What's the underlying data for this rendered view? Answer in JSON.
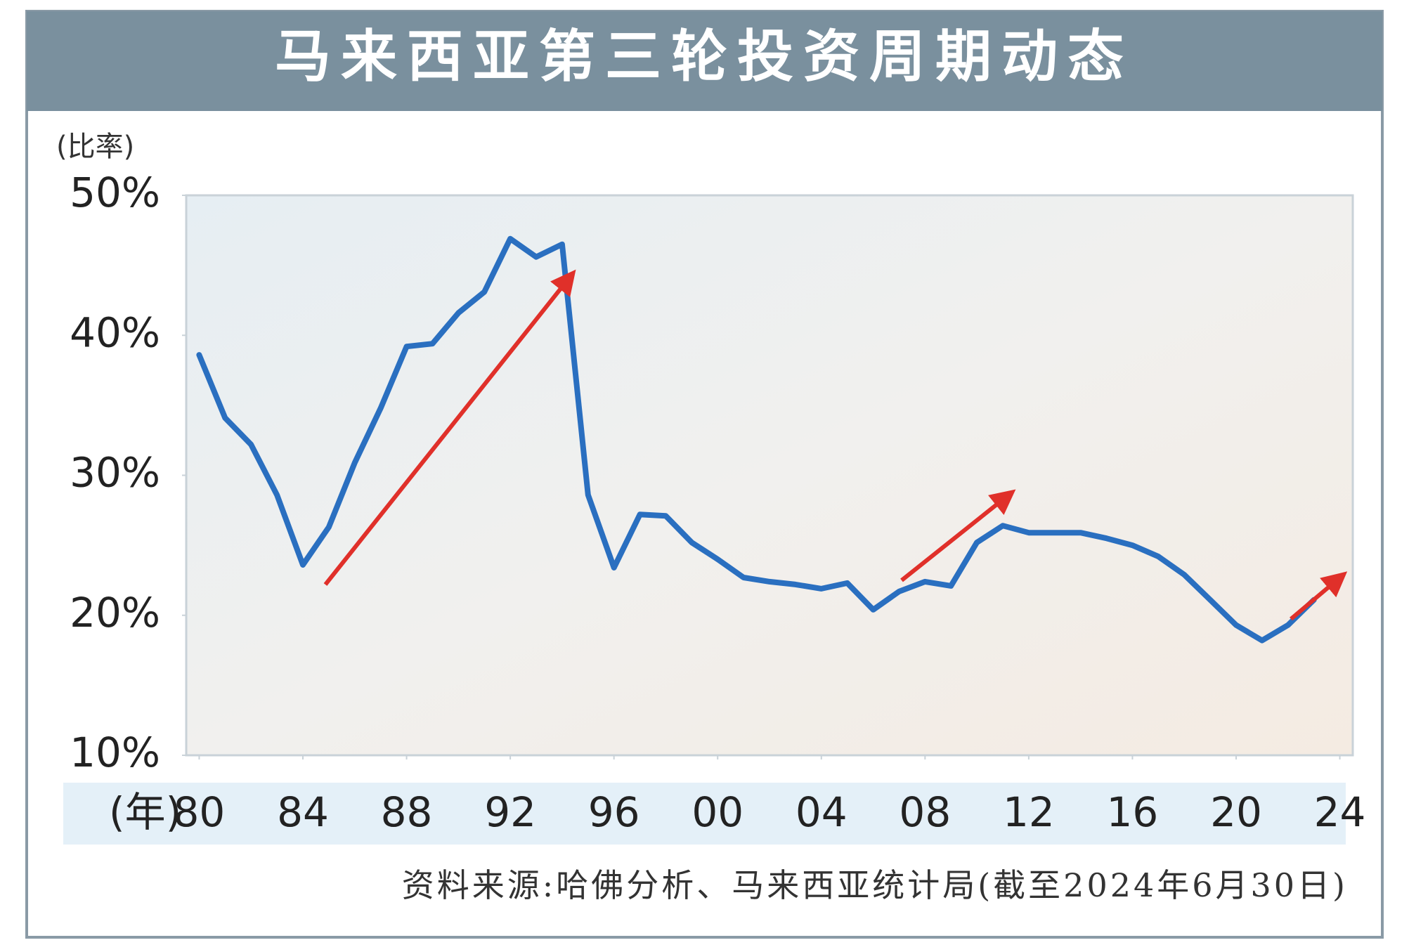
{
  "chart_data": {
    "type": "line",
    "title": "马来西亚第三轮投资周期动态",
    "y_label": "(比率)",
    "x_label": "(年)",
    "source": "资料来源:哈佛分析、马来西亚统计局(截至2024年6月30日)",
    "x": [
      1980,
      1981,
      1982,
      1983,
      1984,
      1985,
      1986,
      1987,
      1988,
      1989,
      1990,
      1991,
      1992,
      1993,
      1994,
      1995,
      1996,
      1997,
      1998,
      1999,
      2000,
      2001,
      2002,
      2003,
      2004,
      2005,
      2006,
      2007,
      2008,
      2009,
      2010,
      2011,
      2012,
      2013,
      2014,
      2015,
      2016,
      2017,
      2018,
      2019,
      2020,
      2021,
      2022,
      2023
    ],
    "values": [
      38.6,
      34.1,
      32.2,
      28.6,
      23.6,
      26.3,
      30.9,
      34.8,
      39.2,
      39.4,
      41.6,
      43.1,
      46.9,
      45.6,
      46.5,
      28.6,
      23.4,
      27.2,
      27.1,
      25.2,
      24.0,
      22.7,
      22.4,
      22.2,
      21.9,
      22.3,
      20.4,
      21.7,
      22.4,
      22.1,
      25.2,
      26.4,
      25.9,
      25.9,
      25.9,
      25.5,
      25.0,
      24.2,
      22.9,
      21.1,
      19.3,
      18.2,
      19.3,
      21.1
    ],
    "color": "#2a6fc0",
    "xlim": [
      1979.5,
      2024.5
    ],
    "xticks": [
      {
        "value": 1980,
        "label": "80"
      },
      {
        "value": 1984,
        "label": "84"
      },
      {
        "value": 1988,
        "label": "88"
      },
      {
        "value": 1992,
        "label": "92"
      },
      {
        "value": 1996,
        "label": "96"
      },
      {
        "value": 2000,
        "label": "00"
      },
      {
        "value": 2004,
        "label": "04"
      },
      {
        "value": 2008,
        "label": "08"
      },
      {
        "value": 2012,
        "label": "12"
      },
      {
        "value": 2016,
        "label": "16"
      },
      {
        "value": 2020,
        "label": "20"
      },
      {
        "value": 2024,
        "label": "24"
      }
    ],
    "ylim": [
      10,
      50
    ],
    "yticks": [
      {
        "value": 10,
        "label": "10%"
      },
      {
        "value": 20,
        "label": "20%"
      },
      {
        "value": 30,
        "label": "30%"
      },
      {
        "value": 40,
        "label": "40%"
      },
      {
        "value": 50,
        "label": "50%"
      }
    ],
    "grid": false
  }
}
